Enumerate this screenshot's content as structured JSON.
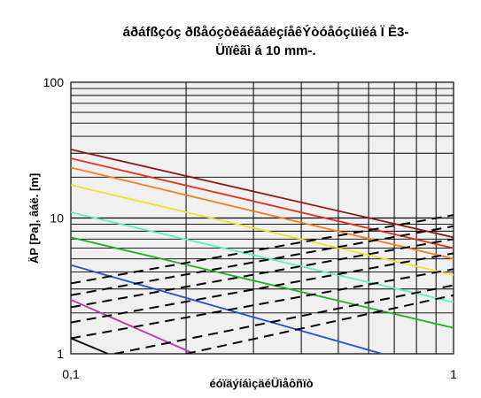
{
  "title": {
    "line1": "áðáfßçóç ðßåóçòêáéâáëçíåêÝòóåóçüìéá Ï Ê3-",
    "line2": "Üïïêãì á 10 mm-."
  },
  "chart_data": {
    "type": "line",
    "title": "áðáfßçóç ðßåóçòêáéâáëçíåêÝòóåóçüìéá Ï Ê3- Üïïêãì á 10 mm-.",
    "xlabel": "éóïäýíáìçäéÜìåôñïò",
    "ylabel": "ÄP [Pa], âáë. [m]",
    "xscale": "log",
    "yscale": "log",
    "xlim": [
      0.1,
      1
    ],
    "ylim": [
      1,
      100
    ],
    "x_ticks": [
      "0,1",
      "1"
    ],
    "y_ticks": [
      "1",
      "10",
      "100"
    ],
    "grid": true,
    "series": [
      {
        "style": "solid",
        "color": "#8b1a1a",
        "points": [
          [
            0.1,
            32
          ],
          [
            1,
            7.2
          ]
        ]
      },
      {
        "style": "solid",
        "color": "#e03020",
        "points": [
          [
            0.1,
            27.5
          ],
          [
            1,
            6.0
          ]
        ]
      },
      {
        "style": "solid",
        "color": "#f08020",
        "points": [
          [
            0.1,
            23.5
          ],
          [
            1,
            5.0
          ]
        ]
      },
      {
        "style": "solid",
        "color": "#f0e030",
        "points": [
          [
            0.1,
            17.5
          ],
          [
            1,
            3.8
          ]
        ]
      },
      {
        "style": "solid",
        "color": "#60f0c0",
        "points": [
          [
            0.1,
            11
          ],
          [
            1,
            2.4
          ]
        ]
      },
      {
        "style": "solid",
        "color": "#20b020",
        "points": [
          [
            0.1,
            7.2
          ],
          [
            1,
            1.55
          ]
        ]
      },
      {
        "style": "solid",
        "color": "#2050d0",
        "points": [
          [
            0.1,
            4.5
          ],
          [
            0.65,
            1.0
          ]
        ]
      },
      {
        "style": "solid",
        "color": "#c030b0",
        "points": [
          [
            0.1,
            2.5
          ],
          [
            0.21,
            1.0
          ]
        ]
      },
      {
        "style": "solid",
        "color": "#000000",
        "points": [
          [
            0.1,
            1.3
          ],
          [
            0.125,
            1.0
          ]
        ]
      },
      {
        "style": "dashed",
        "color": "#000000",
        "points": [
          [
            0.1,
            3.3
          ],
          [
            1,
            10.5
          ]
        ]
      },
      {
        "style": "dashed",
        "color": "#000000",
        "points": [
          [
            0.1,
            2.7
          ],
          [
            1,
            8.7
          ]
        ]
      },
      {
        "style": "dashed",
        "color": "#000000",
        "points": [
          [
            0.1,
            2.2
          ],
          [
            1,
            7.0
          ]
        ]
      },
      {
        "style": "dashed",
        "color": "#000000",
        "points": [
          [
            0.1,
            1.7
          ],
          [
            1,
            5.5
          ]
        ]
      },
      {
        "style": "dashed",
        "color": "#000000",
        "points": [
          [
            0.1,
            1.3
          ],
          [
            1,
            4.2
          ]
        ]
      },
      {
        "style": "dashed",
        "color": "#000000",
        "points": [
          [
            0.13,
            1.0
          ],
          [
            1,
            3.2
          ]
        ]
      },
      {
        "style": "dashed",
        "color": "#000000",
        "points": [
          [
            0.2,
            1.0
          ],
          [
            1,
            2.7
          ]
        ]
      }
    ]
  },
  "colors": {
    "plot_background": "#f0f0f0",
    "grid": "#000000"
  }
}
